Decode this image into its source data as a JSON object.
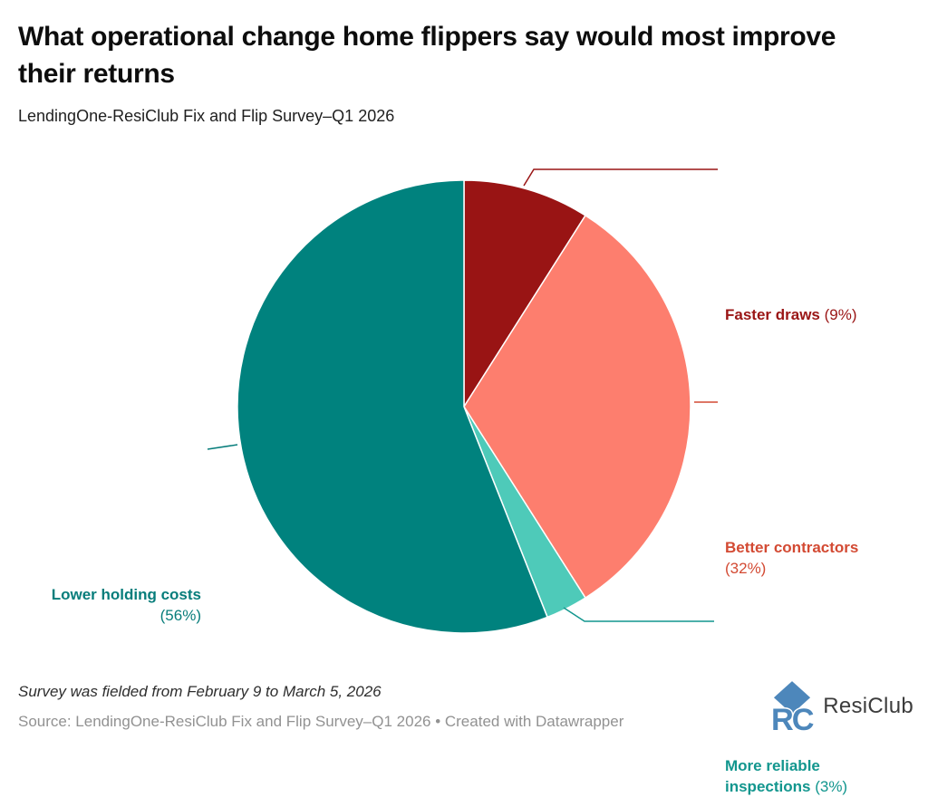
{
  "chart_data": {
    "type": "pie",
    "title": "What operational change home flippers say would most improve their returns",
    "subtitle": "LendingOne-ResiClub Fix and Flip Survey–Q1 2026",
    "start_angle_deg": 0,
    "direction": "clockwise",
    "slice_gap_color": "#ffffff",
    "legend_position": "outside-callout-labels",
    "slices": [
      {
        "id": "faster-draws",
        "label": "Faster draws",
        "pct_label": "(9%)",
        "value": 9,
        "color": "#991414",
        "label_color": "#9a1515"
      },
      {
        "id": "better-contractors",
        "label": "Better contractors",
        "pct_label": "(32%)",
        "value": 32,
        "color": "#fd7e6e",
        "label_color": "#d34a33"
      },
      {
        "id": "more-reliable-inspections",
        "label": "More reliable inspections",
        "pct_label": "(3%)",
        "value": 3,
        "color": "#4ecab9",
        "label_color": "#12968e"
      },
      {
        "id": "lower-holding-costs",
        "label": "Lower holding costs",
        "pct_label": "(56%)",
        "value": 56,
        "color": "#00827e",
        "label_color": "#077d7b"
      }
    ]
  },
  "footer": {
    "note": "Survey was fielded from February 9 to March 5, 2026",
    "source": "Source: LendingOne-ResiClub Fix and Flip Survey–Q1 2026 • Created with Datawrapper",
    "logo_text": "ResiClub",
    "logo_monogram": "RC",
    "logo_color": "#4d87bb"
  }
}
